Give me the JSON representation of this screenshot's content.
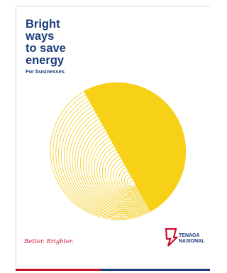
{
  "cover": {
    "title": [
      "Bright",
      "ways",
      "to save",
      "energy"
    ],
    "subtitle": "For businesses",
    "tagline": "Better. Brighter.",
    "logo": [
      "TENAGA",
      "NASIONAL"
    ]
  }
}
